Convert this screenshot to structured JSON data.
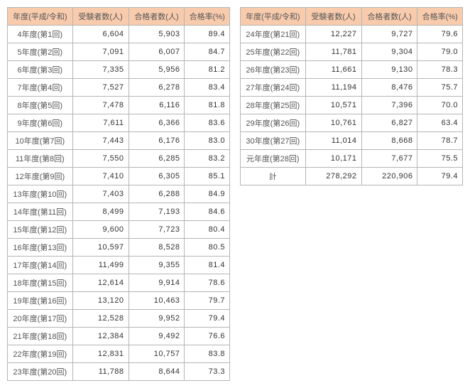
{
  "headers": {
    "year": "年度(平成/令和)",
    "examinees": "受験者数(人)",
    "passers": "合格者数(人)",
    "rate": "合格率(%)"
  },
  "left": [
    {
      "y": "4年度(第1回)",
      "e": "6,604",
      "p": "5,903",
      "r": "89.4"
    },
    {
      "y": "5年度(第2回)",
      "e": "7,091",
      "p": "6,007",
      "r": "84.7"
    },
    {
      "y": "6年度(第3回)",
      "e": "7,335",
      "p": "5,956",
      "r": "81.2"
    },
    {
      "y": "7年度(第4回)",
      "e": "7,527",
      "p": "6,278",
      "r": "83.4"
    },
    {
      "y": "8年度(第5回)",
      "e": "7,478",
      "p": "6,116",
      "r": "81.8"
    },
    {
      "y": "9年度(第6回)",
      "e": "7,611",
      "p": "6,366",
      "r": "83.6"
    },
    {
      "y": "10年度(第7回)",
      "e": "7,443",
      "p": "6,176",
      "r": "83.0"
    },
    {
      "y": "11年度(第8回)",
      "e": "7,550",
      "p": "6,285",
      "r": "83.2"
    },
    {
      "y": "12年度(第9回)",
      "e": "7,410",
      "p": "6,305",
      "r": "85.1"
    },
    {
      "y": "13年度(第10回)",
      "e": "7,403",
      "p": "6,288",
      "r": "84.9"
    },
    {
      "y": "14年度(第11回)",
      "e": "8,499",
      "p": "7,193",
      "r": "84.6"
    },
    {
      "y": "15年度(第12回)",
      "e": "9,600",
      "p": "7,723",
      "r": "80.4"
    },
    {
      "y": "16年度(第13回)",
      "e": "10,597",
      "p": "8,528",
      "r": "80.5"
    },
    {
      "y": "17年度(第14回)",
      "e": "11,499",
      "p": "9,355",
      "r": "81.4"
    },
    {
      "y": "18年度(第15回)",
      "e": "12,614",
      "p": "9,914",
      "r": "78.6"
    },
    {
      "y": "19年度(第16回)",
      "e": "13,120",
      "p": "10,463",
      "r": "79.7"
    },
    {
      "y": "20年度(第17回)",
      "e": "12,528",
      "p": "9,952",
      "r": "79.4"
    },
    {
      "y": "21年度(第18回)",
      "e": "12,384",
      "p": "9,492",
      "r": "76.6"
    },
    {
      "y": "22年度(第19回)",
      "e": "12,831",
      "p": "10,757",
      "r": "83.8"
    },
    {
      "y": "23年度(第20回)",
      "e": "11,788",
      "p": "8,644",
      "r": "73.3"
    }
  ],
  "right": [
    {
      "y": "24年度(第21回)",
      "e": "12,227",
      "p": "9,727",
      "r": "79.6"
    },
    {
      "y": "25年度(第22回)",
      "e": "11,781",
      "p": "9,304",
      "r": "79.0"
    },
    {
      "y": "26年度(第23回)",
      "e": "11,661",
      "p": "9,130",
      "r": "78.3"
    },
    {
      "y": "27年度(第24回)",
      "e": "11,194",
      "p": "8,476",
      "r": "75.7"
    },
    {
      "y": "28年度(第25回)",
      "e": "10,571",
      "p": "7,396",
      "r": "70.0"
    },
    {
      "y": "29年度(第26回)",
      "e": "10,761",
      "p": "6,827",
      "r": "63.4"
    },
    {
      "y": "30年度(第27回)",
      "e": "11,014",
      "p": "8,668",
      "r": "78.7"
    },
    {
      "y": "元年度(第28回)",
      "e": "10,171",
      "p": "7,677",
      "r": "75.5"
    },
    {
      "y": "計",
      "e": "278,292",
      "p": "220,906",
      "r": "79.4"
    }
  ]
}
